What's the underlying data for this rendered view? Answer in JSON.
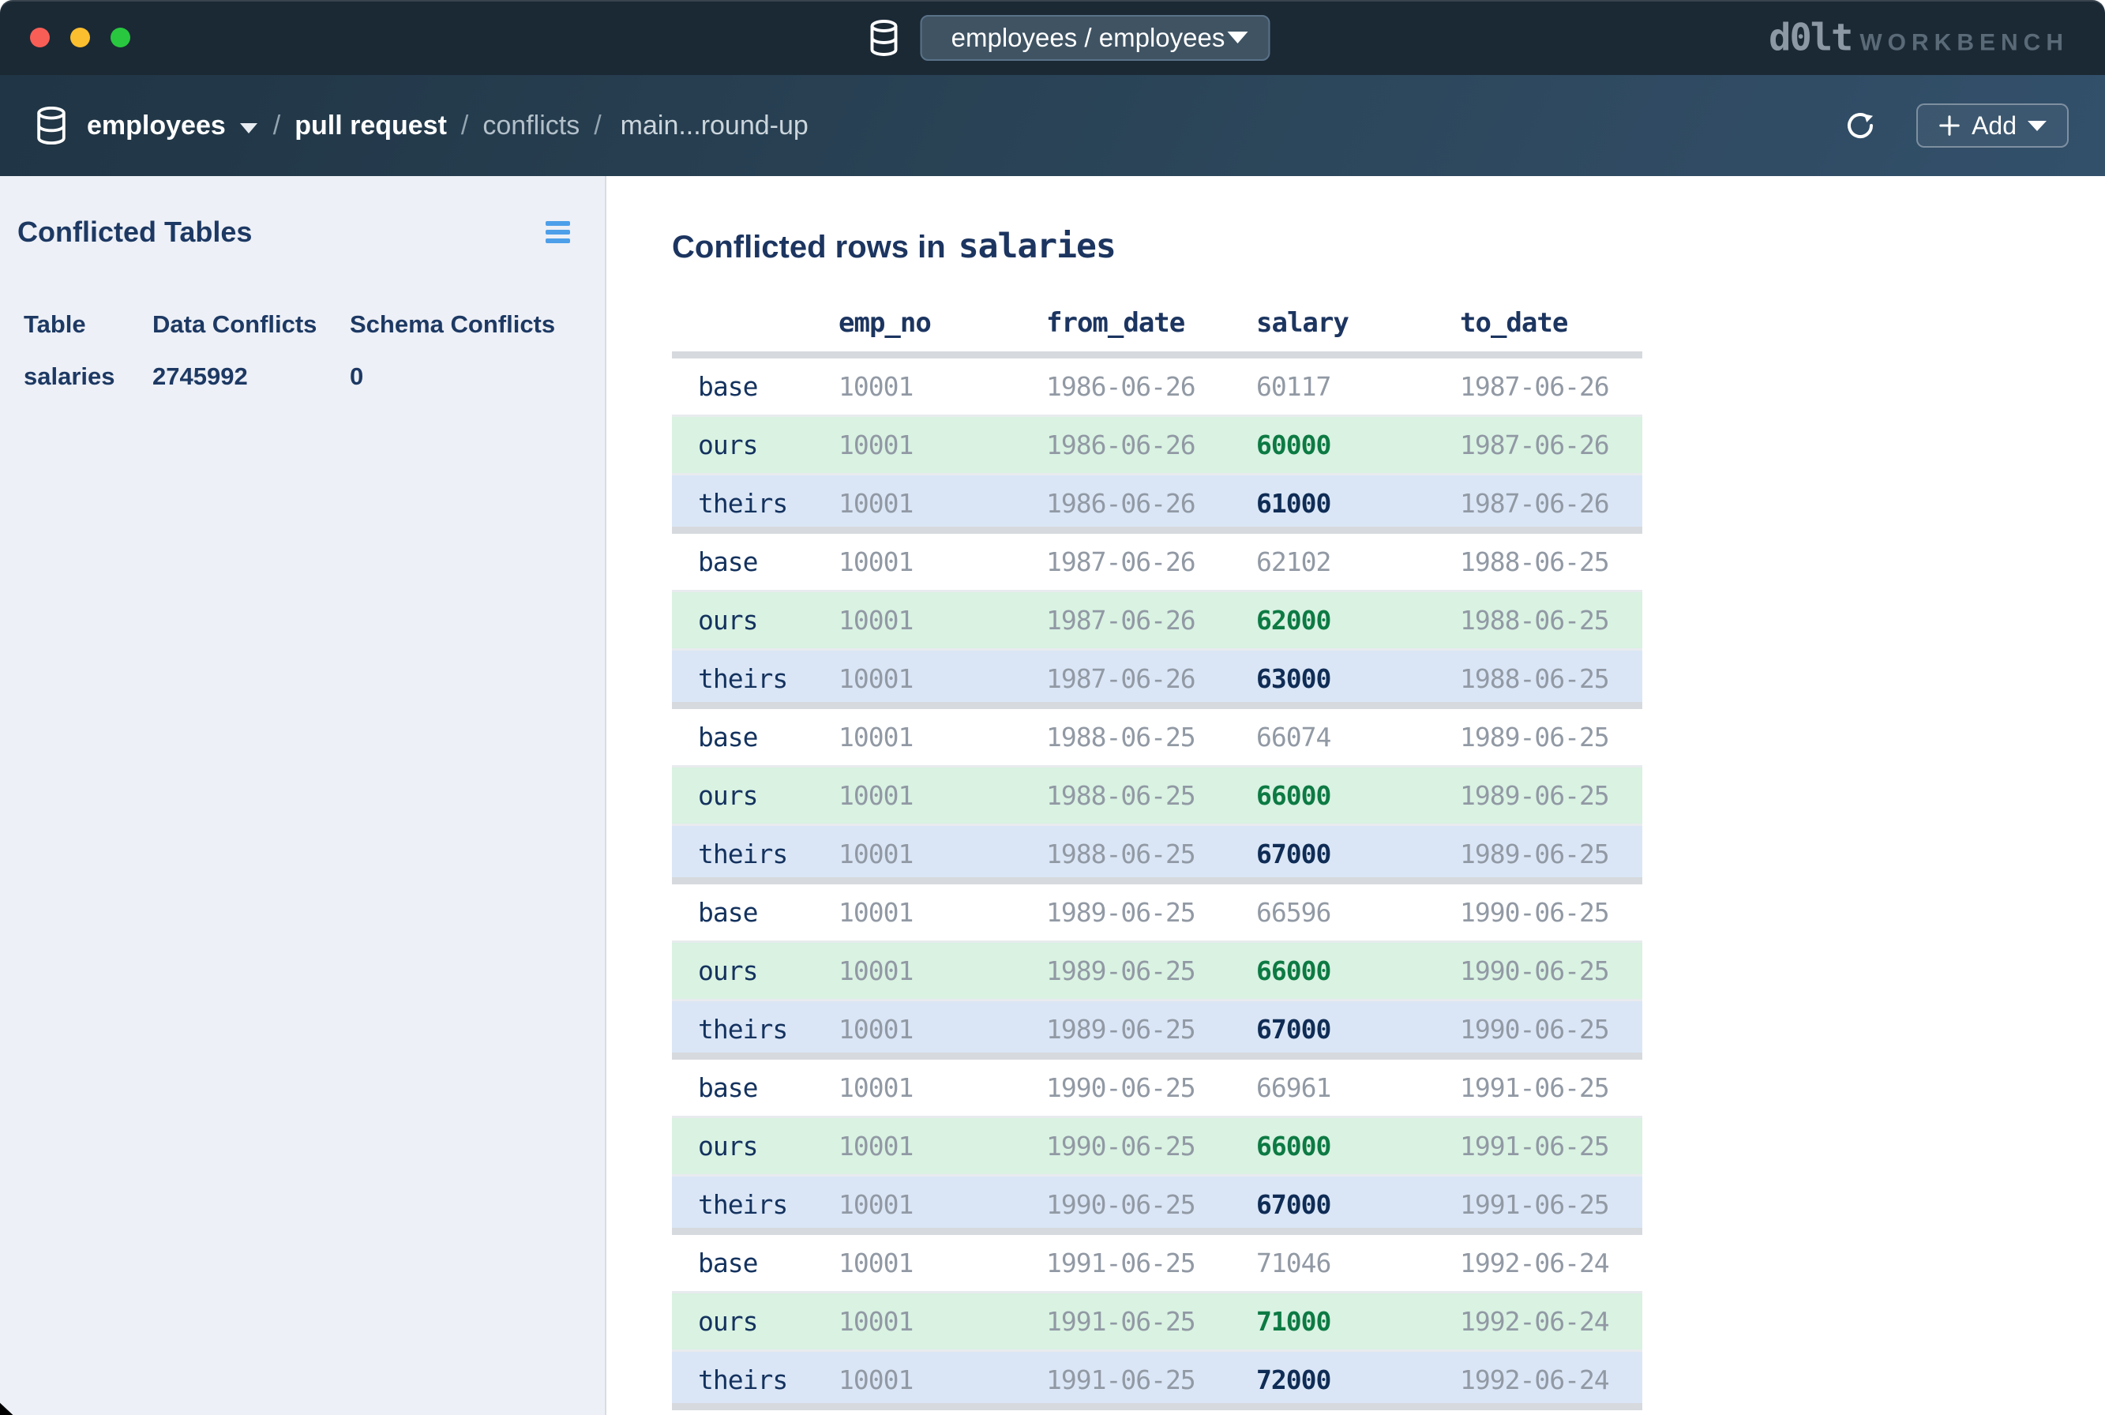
{
  "window": {
    "database_selector": "employees / employees",
    "brand_left": "d0lt",
    "brand_right": "WORKBENCH"
  },
  "nav": {
    "breadcrumbs": [
      {
        "label": "employees"
      },
      {
        "label": "pull request"
      },
      {
        "label": "conflicts"
      },
      {
        "label": "main...round-up"
      }
    ],
    "separator": "/",
    "add_label": "Add"
  },
  "sidebar": {
    "title": "Conflicted Tables",
    "table": {
      "headers": [
        "Table",
        "Data Conflicts",
        "Schema Conflicts"
      ],
      "row": [
        "salaries",
        "2745992",
        "0"
      ]
    }
  },
  "main": {
    "heading_prefix": "Conflicted rows in",
    "heading_table": "salaries",
    "columns": [
      "",
      "emp_no",
      "from_date",
      "salary",
      "to_date"
    ],
    "rows": [
      {
        "version": "base",
        "emp_no": "10001",
        "from_date": "1986-06-26",
        "salary": "60117",
        "to_date": "1987-06-26"
      },
      {
        "version": "ours",
        "emp_no": "10001",
        "from_date": "1986-06-26",
        "salary": "60000",
        "to_date": "1987-06-26"
      },
      {
        "version": "theirs",
        "emp_no": "10001",
        "from_date": "1986-06-26",
        "salary": "61000",
        "to_date": "1987-06-26"
      },
      {
        "version": "base",
        "emp_no": "10001",
        "from_date": "1987-06-26",
        "salary": "62102",
        "to_date": "1988-06-25"
      },
      {
        "version": "ours",
        "emp_no": "10001",
        "from_date": "1987-06-26",
        "salary": "62000",
        "to_date": "1988-06-25"
      },
      {
        "version": "theirs",
        "emp_no": "10001",
        "from_date": "1987-06-26",
        "salary": "63000",
        "to_date": "1988-06-25"
      },
      {
        "version": "base",
        "emp_no": "10001",
        "from_date": "1988-06-25",
        "salary": "66074",
        "to_date": "1989-06-25"
      },
      {
        "version": "ours",
        "emp_no": "10001",
        "from_date": "1988-06-25",
        "salary": "66000",
        "to_date": "1989-06-25"
      },
      {
        "version": "theirs",
        "emp_no": "10001",
        "from_date": "1988-06-25",
        "salary": "67000",
        "to_date": "1989-06-25"
      },
      {
        "version": "base",
        "emp_no": "10001",
        "from_date": "1989-06-25",
        "salary": "66596",
        "to_date": "1990-06-25"
      },
      {
        "version": "ours",
        "emp_no": "10001",
        "from_date": "1989-06-25",
        "salary": "66000",
        "to_date": "1990-06-25"
      },
      {
        "version": "theirs",
        "emp_no": "10001",
        "from_date": "1989-06-25",
        "salary": "67000",
        "to_date": "1990-06-25"
      },
      {
        "version": "base",
        "emp_no": "10001",
        "from_date": "1990-06-25",
        "salary": "66961",
        "to_date": "1991-06-25"
      },
      {
        "version": "ours",
        "emp_no": "10001",
        "from_date": "1990-06-25",
        "salary": "66000",
        "to_date": "1991-06-25"
      },
      {
        "version": "theirs",
        "emp_no": "10001",
        "from_date": "1990-06-25",
        "salary": "67000",
        "to_date": "1991-06-25"
      },
      {
        "version": "base",
        "emp_no": "10001",
        "from_date": "1991-06-25",
        "salary": "71046",
        "to_date": "1992-06-24"
      },
      {
        "version": "ours",
        "emp_no": "10001",
        "from_date": "1991-06-25",
        "salary": "71000",
        "to_date": "1992-06-24"
      },
      {
        "version": "theirs",
        "emp_no": "10001",
        "from_date": "1991-06-25",
        "salary": "72000",
        "to_date": "1992-06-24"
      }
    ]
  },
  "colors": {
    "titlebar_bg": "#1b2935",
    "navbar_gradient_start": "#203545",
    "navbar_gradient_end": "#33506b",
    "sidebar_bg": "#edf0f6",
    "navy_text": "#1c3560",
    "ours_row_bg": "#d9f2e2",
    "theirs_row_bg": "#dae6f6",
    "ours_salary": "#0d7a43",
    "theirs_salary": "#0f2c55",
    "muted_value": "#9199a4",
    "hamburger_blue": "#4d9fe9"
  }
}
